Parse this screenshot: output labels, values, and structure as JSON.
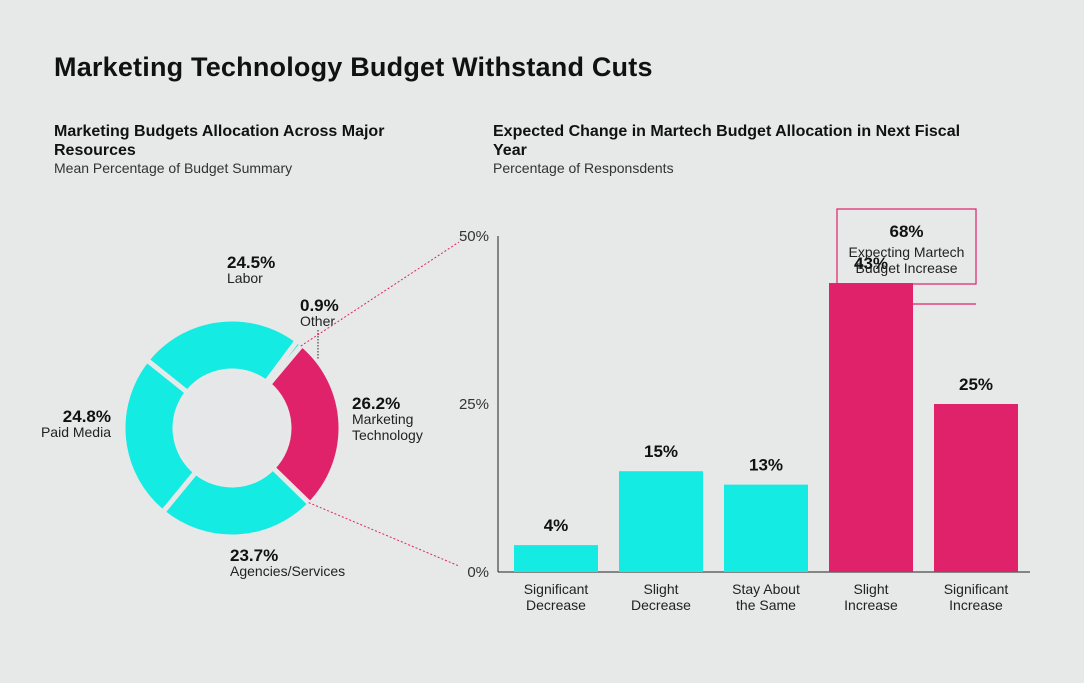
{
  "title": "Marketing Technology Budget Withstand Cuts",
  "colors": {
    "cyan": "#13ebe3",
    "magenta": "#e0226b",
    "hole": "#e7e8e8",
    "background": "#e7e8e8"
  },
  "chart_data": [
    {
      "type": "pie",
      "variant": "donut",
      "title": "Marketing Budgets Allocation Across Major Resources",
      "subtitle": "Mean Percentage of Budget Summary",
      "slices": [
        {
          "name": "Marketing Technology",
          "value": 26.2,
          "value_label": "26.2%",
          "label_lines": [
            "Marketing",
            "Technology"
          ],
          "highlight": true
        },
        {
          "name": "Agencies/Services",
          "value": 23.7,
          "value_label": "23.7%",
          "label_lines": [
            "Agencies/Services"
          ],
          "highlight": false
        },
        {
          "name": "Paid Media",
          "value": 24.8,
          "value_label": "24.8%",
          "label_lines": [
            "Paid Media"
          ],
          "highlight": false
        },
        {
          "name": "Labor",
          "value": 24.5,
          "value_label": "24.5%",
          "label_lines": [
            "Labor"
          ],
          "highlight": false
        },
        {
          "name": "Other",
          "value": 0.9,
          "value_label": "0.9%",
          "label_lines": [
            "Other"
          ],
          "highlight": false
        }
      ]
    },
    {
      "type": "bar",
      "title": "Expected Change in Martech Budget Allocation in Next Fiscal Year",
      "subtitle": "Percentage of Responsdents",
      "ylim": [
        0,
        50
      ],
      "yticks": [
        {
          "value": 0,
          "label": "0%"
        },
        {
          "value": 25,
          "label": "25%"
        },
        {
          "value": 50,
          "label": "50%"
        }
      ],
      "bars": [
        {
          "category_lines": [
            "Significant",
            "Decrease"
          ],
          "value": 4,
          "value_label": "4%",
          "highlight": false
        },
        {
          "category_lines": [
            "Slight",
            "Decrease"
          ],
          "value": 15,
          "value_label": "15%",
          "highlight": false
        },
        {
          "category_lines": [
            "Stay About",
            "the Same"
          ],
          "value": 13,
          "value_label": "13%",
          "highlight": false
        },
        {
          "category_lines": [
            "Slight",
            "Increase"
          ],
          "value": 43,
          "value_label": "43%",
          "highlight": true
        },
        {
          "category_lines": [
            "Significant",
            "Increase"
          ],
          "value": 25,
          "value_label": "25%",
          "highlight": true
        }
      ],
      "annotation": {
        "value_label": "68%",
        "text_lines": [
          "Expecting Martech",
          "Budget Increase"
        ]
      }
    }
  ]
}
